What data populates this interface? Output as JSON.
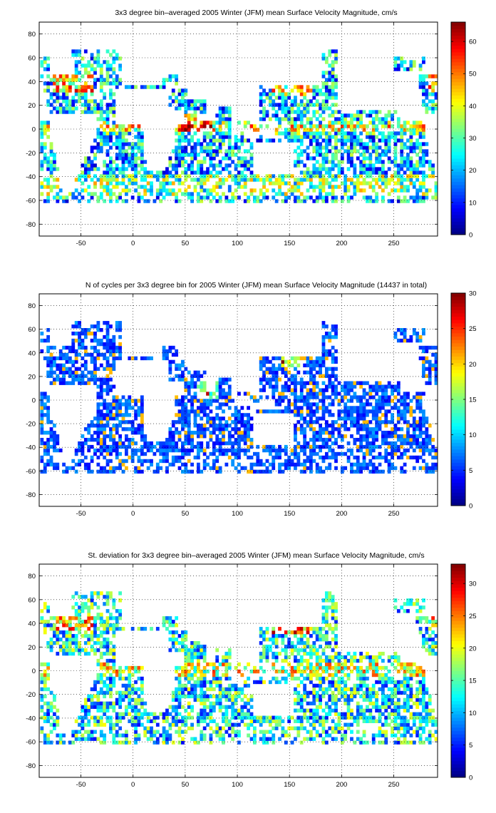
{
  "chart_data": [
    {
      "type": "heatmap",
      "title": "3x3 degree bin–averaged 2005 Winter (JFM) mean Surface Velocity Magnitude, cm/s",
      "xlabel": "",
      "ylabel": "",
      "xlim": [
        -90,
        292
      ],
      "ylim": [
        -90,
        90
      ],
      "x_ticks": [
        -50,
        0,
        50,
        100,
        150,
        200,
        250
      ],
      "y_ticks": [
        80,
        60,
        40,
        20,
        0,
        -20,
        -40,
        -60,
        -80
      ],
      "grid": true,
      "colorbar": {
        "min": 0,
        "max": 66,
        "ticks": [
          0,
          10,
          20,
          30,
          40,
          50,
          60
        ],
        "colormap": "jet",
        "placement": "right"
      },
      "bin_size_deg": 3,
      "field_pattern": "speed"
    },
    {
      "type": "heatmap",
      "title": "N of cycles per 3x3 degree bin for 2005 Winter (JFM) mean Surface Velocity Magnitude (14437 in total)",
      "xlabel": "",
      "ylabel": "",
      "xlim": [
        -90,
        292
      ],
      "ylim": [
        -90,
        90
      ],
      "x_ticks": [
        -50,
        0,
        50,
        100,
        150,
        200,
        250
      ],
      "y_ticks": [
        80,
        60,
        40,
        20,
        0,
        -20,
        -40,
        -60,
        -80
      ],
      "grid": true,
      "colorbar": {
        "min": 0,
        "max": 30,
        "ticks": [
          0,
          5,
          10,
          15,
          20,
          25,
          30
        ],
        "colormap": "jet",
        "placement": "right"
      },
      "bin_size_deg": 3,
      "field_pattern": "count"
    },
    {
      "type": "heatmap",
      "title": "St. deviation for 3x3 degree bin–averaged 2005 Winter (JFM) mean Surface Velocity Magnitude, cm/s",
      "xlabel": "",
      "ylabel": "",
      "xlim": [
        -90,
        292
      ],
      "ylim": [
        -90,
        90
      ],
      "x_ticks": [
        -50,
        0,
        50,
        100,
        150,
        200,
        250
      ],
      "y_ticks": [
        80,
        60,
        40,
        20,
        0,
        -20,
        -40,
        -60,
        -80
      ],
      "grid": true,
      "colorbar": {
        "min": 0,
        "max": 33,
        "ticks": [
          0,
          5,
          10,
          15,
          20,
          25,
          30
        ],
        "colormap": "jet",
        "placement": "right"
      },
      "bin_size_deg": 3,
      "field_pattern": "stdev"
    }
  ]
}
